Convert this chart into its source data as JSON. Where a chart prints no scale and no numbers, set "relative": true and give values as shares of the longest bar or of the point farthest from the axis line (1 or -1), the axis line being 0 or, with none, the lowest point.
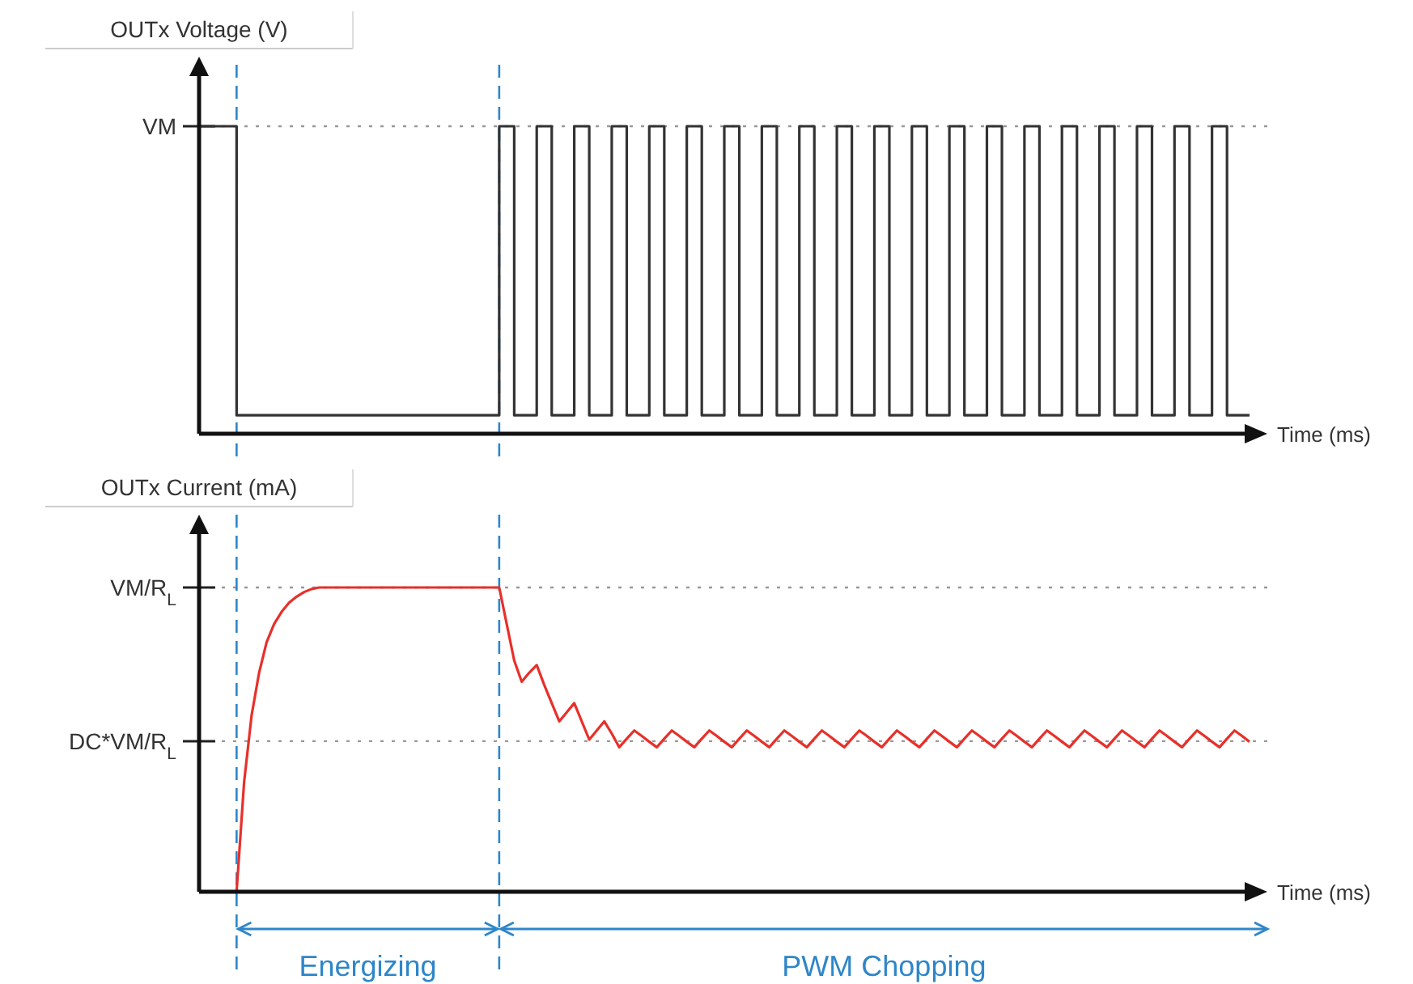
{
  "chart_data": [
    {
      "type": "step",
      "ylabel": "OUTx Voltage (V)",
      "xlabel": "Time (ms)",
      "relative": true,
      "categories": [
        null,
        null,
        null,
        null,
        null,
        null,
        null,
        null,
        null,
        null,
        null,
        null,
        null,
        null,
        null,
        null,
        null,
        null,
        null,
        null,
        null,
        null,
        null,
        null,
        null,
        null,
        null,
        null,
        null,
        null,
        null,
        null,
        null,
        null,
        null,
        null,
        null,
        null,
        null,
        null,
        null,
        null,
        null,
        null,
        null,
        null,
        null,
        null,
        null,
        null,
        null,
        null,
        null,
        null,
        null,
        null,
        null,
        null,
        null,
        null,
        null,
        null,
        null,
        null,
        null,
        null,
        null,
        null,
        null,
        null,
        null,
        null,
        null,
        null,
        null,
        null,
        null,
        null,
        null,
        null,
        null,
        null,
        null,
        null,
        null,
        null,
        null,
        null,
        null,
        null,
        null,
        null,
        null,
        null,
        null,
        null,
        null,
        null,
        null,
        null,
        null,
        null,
        null,
        null,
        null,
        null,
        null,
        null,
        null,
        null,
        null,
        null,
        null,
        null,
        null,
        null,
        null,
        null,
        null,
        null,
        null,
        null,
        null,
        null,
        null,
        null,
        null,
        null,
        null,
        null,
        null,
        null,
        null,
        null,
        null,
        null,
        null,
        null,
        null,
        null,
        null
      ],
      "series": [
        {
          "color": "#333333",
          "values": [
            1,
            1,
            1,
            1,
            1,
            0.06,
            0.06,
            0.06,
            0.06,
            0.06,
            0.06,
            0.06,
            0.06,
            0.06,
            0.06,
            0.06,
            0.06,
            0.06,
            0.06,
            0.06,
            0.06,
            0.06,
            0.06,
            0.06,
            0.06,
            0.06,
            0.06,
            0.06,
            0.06,
            0.06,
            0.06,
            0.06,
            0.06,
            0.06,
            0.06,
            0.06,
            0.06,
            0.06,
            0.06,
            0.06,
            1,
            1,
            0.06,
            0.06,
            0.06,
            1,
            1,
            0.06,
            0.06,
            0.06,
            1,
            1,
            0.06,
            0.06,
            0.06,
            1,
            1,
            0.06,
            0.06,
            0.06,
            1,
            1,
            0.06,
            0.06,
            0.06,
            1,
            1,
            0.06,
            0.06,
            0.06,
            1,
            1,
            0.06,
            0.06,
            0.06,
            1,
            1,
            0.06,
            0.06,
            0.06,
            1,
            1,
            0.06,
            0.06,
            0.06,
            1,
            1,
            0.06,
            0.06,
            0.06,
            1,
            1,
            0.06,
            0.06,
            0.06,
            1,
            1,
            0.06,
            0.06,
            0.06,
            1,
            1,
            0.06,
            0.06,
            0.06,
            1,
            1,
            0.06,
            0.06,
            0.06,
            1,
            1,
            0.06,
            0.06,
            0.06,
            1,
            1,
            0.06,
            0.06,
            0.06,
            1,
            1,
            0.06,
            0.06,
            0.06,
            1,
            1,
            0.06,
            0.06,
            0.06,
            1,
            1,
            0.06,
            0.06,
            0.06,
            1,
            1,
            0.06,
            0.06,
            0.06,
            0.06
          ]
        }
      ],
      "ref_lines": [
        {
          "axis": "y",
          "value": 1,
          "label": "VM",
          "color": "#999999",
          "line_style": "dotted"
        }
      ]
    },
    {
      "type": "line",
      "ylabel": "OUTx Current (mA)",
      "xlabel": "Time (ms)",
      "relative": true,
      "categories": [
        null,
        null,
        null,
        null,
        null,
        null,
        null,
        null,
        null,
        null,
        null,
        null,
        null,
        null,
        null,
        null,
        null,
        null,
        null,
        null,
        null,
        null,
        null,
        null,
        null,
        null,
        null,
        null,
        null,
        null,
        null,
        null,
        null,
        null,
        null,
        null,
        null,
        null,
        null,
        null,
        null,
        null,
        null,
        null,
        null,
        null,
        null,
        null,
        null,
        null,
        null,
        null,
        null,
        null,
        null,
        null,
        null,
        null,
        null,
        null,
        null,
        null,
        null,
        null,
        null,
        null,
        null,
        null,
        null,
        null,
        null,
        null,
        null,
        null,
        null,
        null,
        null,
        null,
        null,
        null,
        null,
        null,
        null,
        null,
        null,
        null,
        null,
        null,
        null,
        null,
        null,
        null,
        null,
        null,
        null,
        null,
        null,
        null,
        null,
        null,
        null,
        null,
        null,
        null,
        null,
        null,
        null,
        null,
        null,
        null,
        null,
        null,
        null,
        null,
        null,
        null,
        null,
        null,
        null,
        null,
        null,
        null,
        null,
        null,
        null,
        null,
        null,
        null,
        null,
        null,
        null,
        null,
        null,
        null,
        null,
        null,
        null,
        null,
        null,
        null,
        null
      ],
      "series": [
        {
          "color": "#e8302a",
          "values": [
            null,
            null,
            null,
            null,
            null,
            0,
            0.36,
            0.58,
            0.72,
            0.82,
            0.88,
            0.92,
            0.95,
            0.97,
            0.985,
            0.995,
            1,
            1,
            1,
            1,
            1,
            1,
            1,
            1,
            1,
            1,
            1,
            1,
            1,
            1,
            1,
            1,
            1,
            1,
            1,
            1,
            1,
            1,
            1,
            1,
            1,
            0.88,
            0.76,
            0.69,
            0.72,
            0.745,
            0.68,
            0.62,
            0.56,
            0.59,
            0.62,
            0.56,
            0.5,
            0.53,
            0.56,
            0.52,
            0.475,
            0.503,
            0.53,
            0.512,
            0.493,
            0.475,
            0.503,
            0.53,
            0.512,
            0.493,
            0.475,
            0.503,
            0.53,
            0.512,
            0.493,
            0.475,
            0.503,
            0.53,
            0.512,
            0.493,
            0.475,
            0.503,
            0.53,
            0.512,
            0.493,
            0.475,
            0.503,
            0.53,
            0.512,
            0.493,
            0.475,
            0.503,
            0.53,
            0.512,
            0.493,
            0.475,
            0.503,
            0.53,
            0.512,
            0.493,
            0.475,
            0.503,
            0.53,
            0.512,
            0.493,
            0.475,
            0.503,
            0.53,
            0.512,
            0.493,
            0.475,
            0.503,
            0.53,
            0.512,
            0.493,
            0.475,
            0.503,
            0.53,
            0.512,
            0.493,
            0.475,
            0.503,
            0.53,
            0.512,
            0.493,
            0.475,
            0.503,
            0.53,
            0.512,
            0.493,
            0.475,
            0.503,
            0.53,
            0.512,
            0.493,
            0.475,
            0.503,
            0.53,
            0.512,
            0.493,
            0.475,
            0.503,
            0.53,
            0.512,
            0.493
          ]
        }
      ],
      "ref_lines": [
        {
          "axis": "y",
          "value": 1,
          "label": "VM/R$_{L}$",
          "color": "#999999",
          "line_style": "dotted"
        },
        {
          "axis": "y",
          "value": 0.495,
          "label": "DC*VM/R$_{L}$",
          "color": "#999999",
          "line_style": "dotted"
        }
      ],
      "annotations": [
        "Energizing",
        "PWM Chopping"
      ]
    }
  ]
}
